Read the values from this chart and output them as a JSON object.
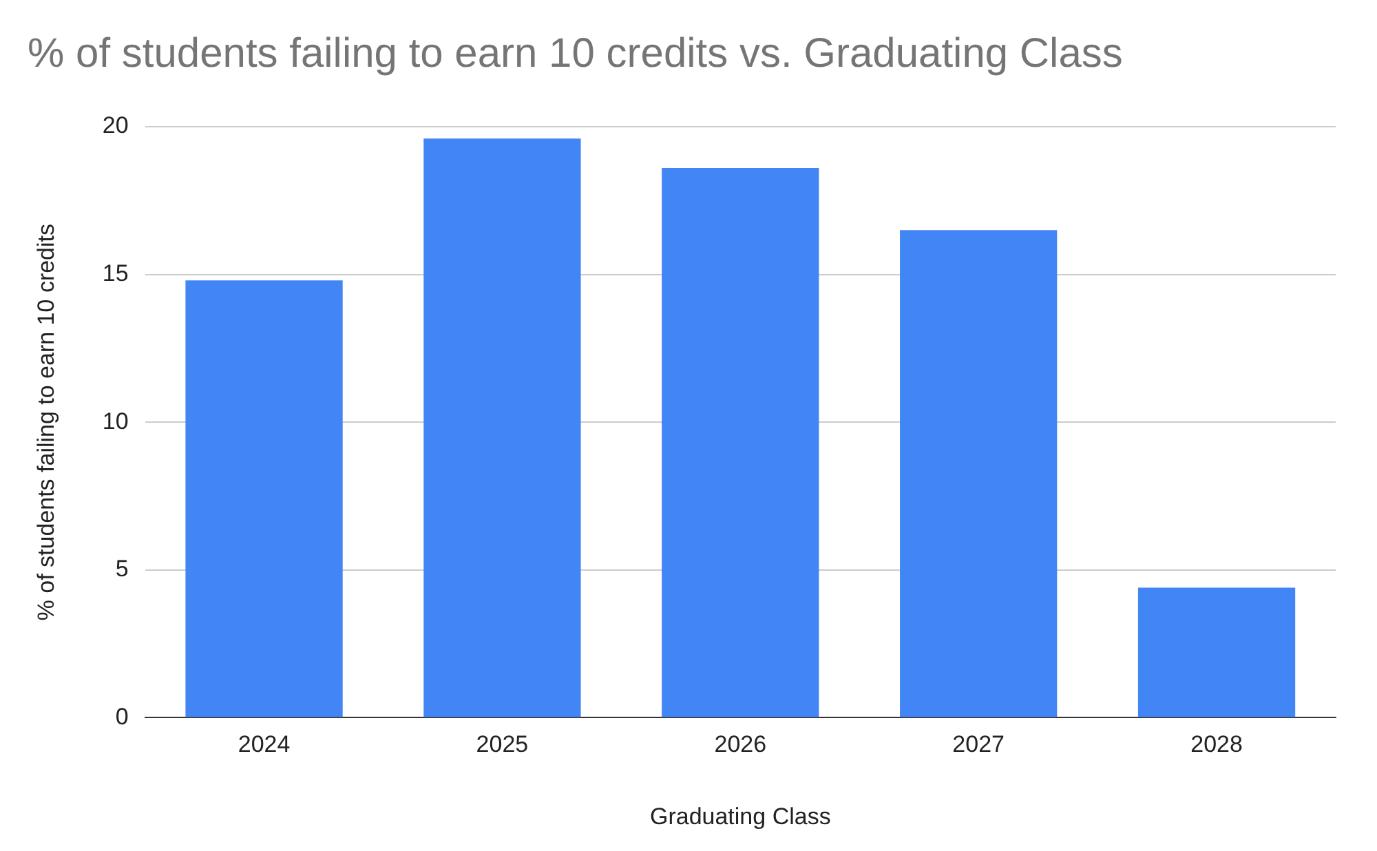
{
  "chart_data": {
    "type": "bar",
    "title": "% of students failing to earn 10 credits vs. Graduating Class",
    "xlabel": "Graduating Class",
    "ylabel": "% of students failing to earn 10 credits",
    "categories": [
      "2024",
      "2025",
      "2026",
      "2027",
      "2028"
    ],
    "values": [
      14.8,
      19.6,
      18.6,
      16.5,
      4.4
    ],
    "color": "#4285f4",
    "ylim": [
      0,
      20
    ],
    "yticks": [
      0,
      5,
      10,
      15,
      20
    ],
    "grid": "y",
    "legend": false
  }
}
